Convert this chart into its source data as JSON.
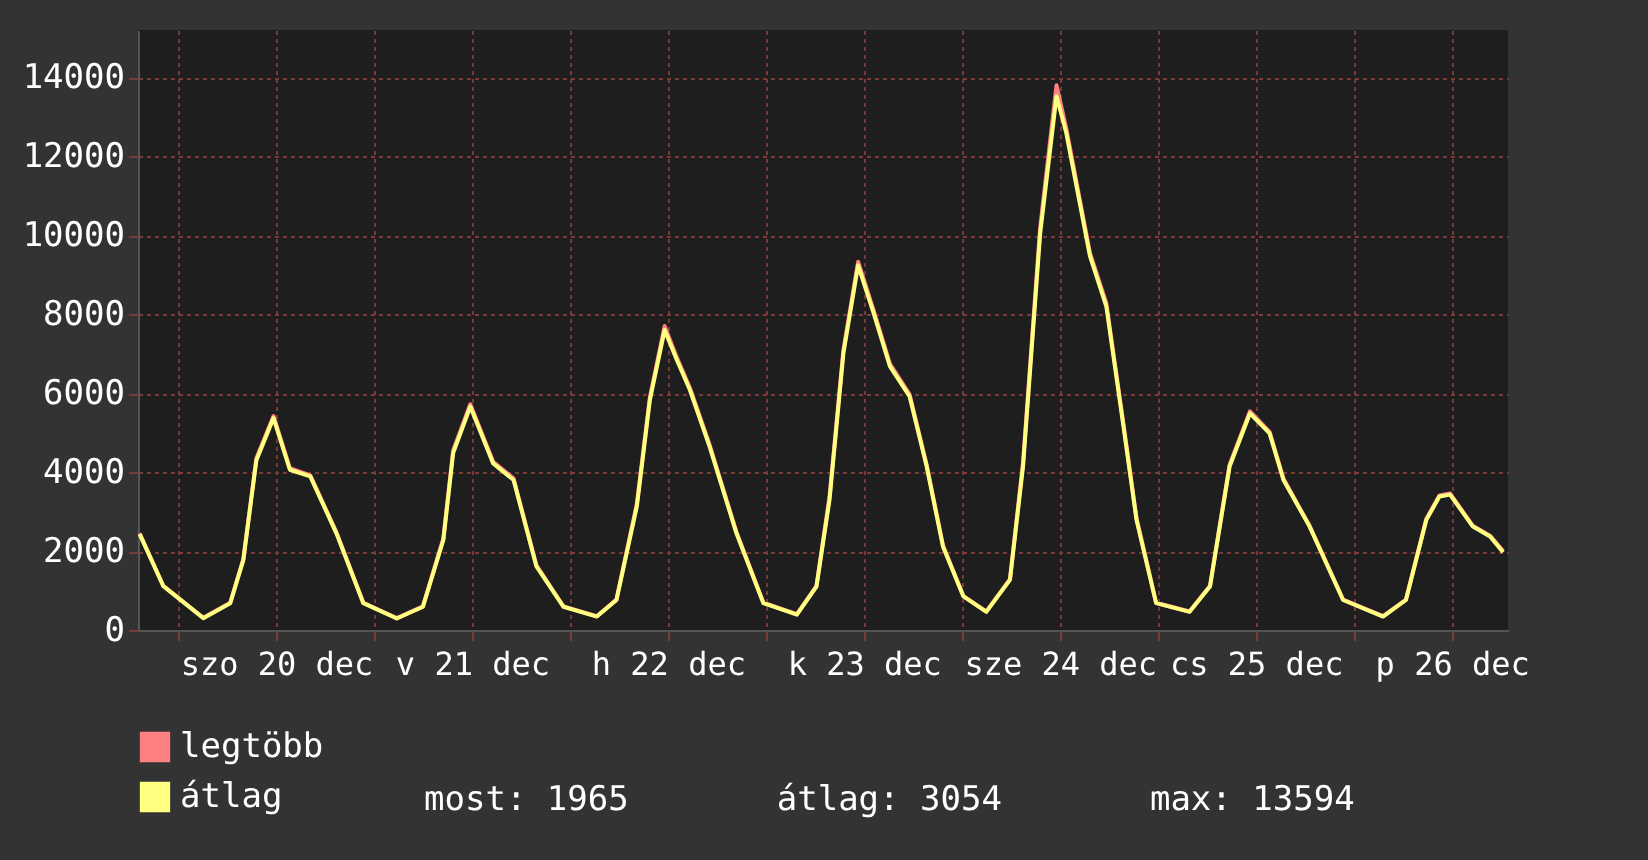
{
  "chart_data": {
    "type": "line",
    "x": [
      "--12-19T19:18",
      "--12-19T22:12",
      "--12-20T03:06",
      "--12-20T06:24",
      "--12-20T08:00",
      "--12-20T09:36",
      "--12-20T11:42",
      "--12-20T13:42",
      "--12-20T16:12",
      "--12-20T19:24",
      "--12-20T22:42",
      "--12-21T02:48",
      "--12-21T06:00",
      "--12-21T08:30",
      "--12-21T09:42",
      "--12-21T11:48",
      "--12-21T14:36",
      "--12-21T17:06",
      "--12-21T19:54",
      "--12-21T23:12",
      "--12-22T03:18",
      "--12-22T05:42",
      "--12-22T08:12",
      "--12-22T09:48",
      "--12-22T11:36",
      "--12-22T13:06",
      "--12-22T14:42",
      "--12-22T17:06",
      "--12-22T20:24",
      "--12-22T23:42",
      "--12-23T03:48",
      "--12-23T06:12",
      "--12-23T07:48",
      "--12-23T09:30",
      "--12-23T11:18",
      "--12-23T13:12",
      "--12-23T15:12",
      "--12-23T17:36",
      "--12-23T19:42",
      "--12-23T21:42",
      "--12-24T00:12",
      "--12-24T03:00",
      "--12-24T05:54",
      "--12-24T07:30",
      "--12-24T09:36",
      "--12-24T11:36",
      "--12-24T12:48",
      "--12-24T15:42",
      "--12-24T17:42",
      "--12-24T19:48",
      "--12-24T21:24",
      "--12-24T23:48",
      "--12-25T03:54",
      "--12-25T06:24",
      "--12-25T08:48",
      "--12-25T11:18",
      "--12-25T13:42",
      "--12-25T15:24",
      "--12-25T18:36",
      "--12-25T22:42",
      "--12-26T03:36",
      "--12-26T06:24",
      "--12-26T08:54",
      "--12-26T10:30",
      "--12-26T11:48",
      "--12-26T14:36",
      "--12-26T16:42",
      "--12-26T18:18"
    ],
    "series": [
      {
        "name": "legtöbb",
        "color": "#ff8080",
        "values": [
          2450,
          1120,
          310,
          690,
          1800,
          4350,
          5420,
          4100,
          3920,
          2480,
          690,
          300,
          600,
          2320,
          4550,
          5720,
          4260,
          3840,
          1640,
          600,
          350,
          770,
          3200,
          5900,
          7700,
          6900,
          6130,
          4700,
          2480,
          690,
          400,
          1120,
          3380,
          7100,
          9330,
          8100,
          6740,
          5970,
          4180,
          2140,
          860,
          470,
          1290,
          4250,
          10200,
          13800,
          12700,
          9550,
          8280,
          5220,
          2830,
          690,
          470,
          1120,
          4190,
          5540,
          5020,
          3830,
          2640,
          770,
          350,
          770,
          2820,
          3410,
          3460,
          2640,
          2390,
          2000
        ]
      },
      {
        "name": "átlag",
        "color": "#ffff80",
        "values": [
          2430,
          1110,
          300,
          680,
          1770,
          4300,
          5370,
          4060,
          3890,
          2450,
          680,
          290,
          590,
          2280,
          4480,
          5660,
          4220,
          3800,
          1610,
          590,
          340,
          760,
          3130,
          5830,
          7600,
          6840,
          6080,
          4650,
          2450,
          680,
          390,
          1100,
          3300,
          7010,
          9240,
          8030,
          6680,
          5920,
          4140,
          2110,
          850,
          460,
          1270,
          4140,
          10050,
          13520,
          12590,
          9470,
          8200,
          5160,
          2790,
          680,
          460,
          1100,
          4140,
          5490,
          4980,
          3800,
          2620,
          760,
          340,
          760,
          2790,
          3380,
          3430,
          2620,
          2370,
          1970
        ]
      }
    ],
    "xlim": [
      "--12-19T19:06",
      "--12-26T18:54"
    ],
    "xticks": [
      {
        "value": "--12-20T00:00",
        "label": null
      },
      {
        "value": "--12-20T12:00",
        "label": "szo 20 dec"
      },
      {
        "value": "--12-21T00:00",
        "label": null
      },
      {
        "value": "--12-21T12:00",
        "label": "v 21 dec"
      },
      {
        "value": "--12-22T00:00",
        "label": null
      },
      {
        "value": "--12-22T12:00",
        "label": "h 22 dec"
      },
      {
        "value": "--12-23T00:00",
        "label": null
      },
      {
        "value": "--12-23T12:00",
        "label": "k 23 dec"
      },
      {
        "value": "--12-24T00:00",
        "label": null
      },
      {
        "value": "--12-24T12:00",
        "label": "sze 24 dec"
      },
      {
        "value": "--12-25T00:00",
        "label": null
      },
      {
        "value": "--12-25T12:00",
        "label": "cs 25 dec"
      },
      {
        "value": "--12-26T00:00",
        "label": null
      },
      {
        "value": "--12-26T12:00",
        "label": "p 26 dec"
      }
    ],
    "ylim": [
      0,
      15200
    ],
    "yticks": [
      0,
      2000,
      4000,
      6000,
      8000,
      10000,
      12000,
      14000
    ],
    "grid": true,
    "legend": "bottom left",
    "annotations": [
      "most: 1965",
      "átlag: 3054",
      "max: 13594"
    ]
  }
}
